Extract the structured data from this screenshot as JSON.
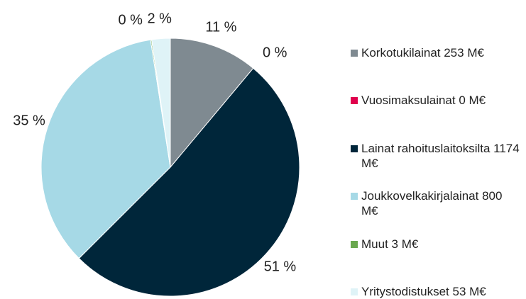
{
  "chart_data": {
    "type": "pie",
    "categories": [
      "Korkotukilainat 253 M€",
      "Vuosimaksulainat 0 M€",
      "Lainat rahoituslaitoksilta 1174 M€",
      "Joukkovelkakirjalainat 800 M€",
      "Muut 3 M€",
      "Yritystodistukset 53 M€"
    ],
    "values": [
      253,
      0,
      1174,
      800,
      3,
      53
    ],
    "value_labels": [
      "11 %",
      "0 %",
      "51 %",
      "35 %",
      "0 %",
      "2 %"
    ],
    "colors": [
      "#7f8a91",
      "#e0004d",
      "#00263a",
      "#a6d9e6",
      "#6aa84f",
      "#dff3f7"
    ],
    "legend": "right"
  }
}
